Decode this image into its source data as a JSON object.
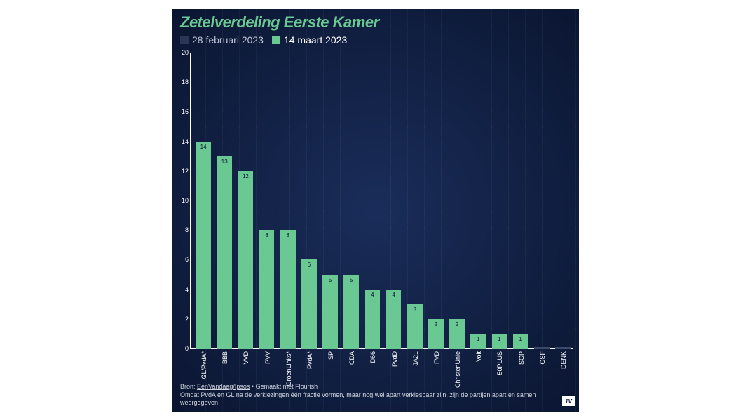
{
  "chart": {
    "type": "bar",
    "title": "Zetelverdeling Eerste Kamer",
    "title_color": "#6ac993",
    "title_fontsize": 22,
    "background_gradient_inner": "#1a2d5a",
    "background_gradient_outer": "#0a1530",
    "pattern_color": "rgba(255,255,255,0.04)",
    "axis_color": "#ffffff",
    "tick_color": "#ffffff",
    "tick_fontsize": 9,
    "cat_label_fontsize": 9,
    "value_label_fontsize": 8,
    "ylim": [
      0,
      20
    ],
    "ytick_step": 2,
    "bar_width_ratio": 0.72,
    "legend": [
      {
        "label": "28 februari 2023",
        "color": "#2b3555",
        "text_color": "#b8c0d0"
      },
      {
        "label": "14 maart 2023",
        "color": "#6ac993",
        "text_color": "#ffffff"
      }
    ],
    "active_series_index": 1,
    "categories": [
      "GL/PvdA*",
      "BBB",
      "VVD",
      "PVV",
      "GroenLinks*",
      "PvdA*",
      "SP",
      "CDA",
      "D66",
      "PvdD",
      "JA21",
      "FVD",
      "ChristenUnie",
      "Volt",
      "50PLUS",
      "SGP",
      "OSF",
      "DENK"
    ],
    "values": [
      14,
      13,
      12,
      8,
      8,
      6,
      5,
      5,
      4,
      4,
      3,
      2,
      2,
      1,
      1,
      1,
      0,
      0
    ],
    "bar_color": "#6ac993",
    "zero_marker_color": "#3a4a6b",
    "value_label_inside_color": "#0a1530",
    "value_label_outside_color": "#ffffff",
    "footer": {
      "source_prefix": "Bron: ",
      "source_link_text": "EenVandaag/Ipsos",
      "made_with": " • Gemaakt met Flourish",
      "note": "Omdat PvdA en GL na de verkiezingen één fractie vormen, maar nog wel apart verkiesbaar zijn, zijn de partijen apart en samen weergegeven",
      "text_color": "#d0d5e0",
      "fontsize": 9
    },
    "brand_badge": "1V"
  }
}
